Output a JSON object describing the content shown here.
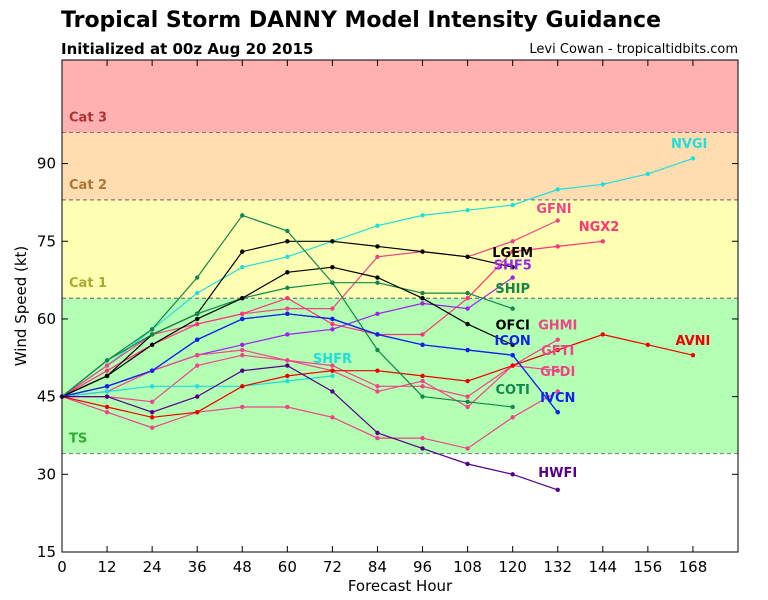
{
  "header": {
    "title": "Tropical Storm DANNY Model Intensity Guidance",
    "subtitle": "Initialized at 00z Aug 20 2015",
    "credit": "Levi Cowan - tropicaltidbits.com"
  },
  "chart_data": {
    "type": "line",
    "title": "Tropical Storm DANNY Model Intensity Guidance",
    "subtitle": "Initialized at 00z Aug 20 2015",
    "xlabel": "Forecast Hour",
    "ylabel": "Wind Speed (kt)",
    "xlim": [
      0,
      180
    ],
    "ylim": [
      15,
      110
    ],
    "xticks": [
      0,
      12,
      24,
      36,
      48,
      60,
      72,
      84,
      96,
      108,
      120,
      132,
      144,
      156,
      168
    ],
    "yticks": [
      15,
      30,
      45,
      60,
      75,
      90
    ],
    "categories_bands": [
      {
        "name": "TS",
        "lo": 34,
        "hi": 64,
        "color": "#b3ffb3",
        "text_color": "#33aa33"
      },
      {
        "name": "Cat 1",
        "lo": 64,
        "hi": 83,
        "color": "#ffffb3",
        "text_color": "#aaaa33"
      },
      {
        "name": "Cat 2",
        "lo": 83,
        "hi": 96,
        "color": "#ffddb0",
        "text_color": "#aa7733"
      },
      {
        "name": "Cat 3",
        "lo": 96,
        "hi": 110,
        "color": "#ffb0b0",
        "text_color": "#aa3333"
      }
    ],
    "series": [
      {
        "name": "NVGI",
        "color": "#22dddd",
        "x": [
          0,
          12,
          24,
          36,
          48,
          60,
          72,
          84,
          96,
          108,
          120,
          132,
          144,
          156,
          168
        ],
        "values": [
          45,
          51,
          58,
          65,
          70,
          72,
          75,
          78,
          80,
          81,
          82,
          85,
          86,
          88,
          91
        ],
        "label_x": 167,
        "label_y": 93
      },
      {
        "name": "GFNI",
        "color": "#ee4488",
        "x": [
          0,
          12,
          24,
          36,
          48,
          60,
          72,
          84,
          96,
          108,
          120,
          132
        ],
        "values": [
          45,
          51,
          57,
          59,
          61,
          62,
          62,
          72,
          73,
          72,
          75,
          79
        ],
        "label_x": 131,
        "label_y": 80.5
      },
      {
        "name": "NGX2",
        "color": "#ff3377",
        "x": [
          0,
          12,
          24,
          36,
          48,
          60,
          72,
          84,
          96,
          108,
          120,
          132,
          144
        ],
        "values": [
          45,
          50,
          55,
          59,
          61,
          64,
          59,
          57,
          57,
          64,
          73,
          74,
          75
        ],
        "label_x": 143,
        "label_y": 77
      },
      {
        "name": "LGEM",
        "color": "#000000",
        "x": [
          0,
          12,
          24,
          36,
          48,
          60,
          72,
          84,
          96,
          108,
          120
        ],
        "values": [
          45,
          49,
          57,
          61,
          73,
          75,
          75,
          74,
          73,
          72,
          70
        ],
        "label_x": 120,
        "label_y": 72
      },
      {
        "name": "SHF5",
        "color": "#9922ee",
        "x": [
          0,
          12,
          24,
          36,
          48,
          60,
          72,
          84,
          96,
          108,
          120
        ],
        "values": [
          45,
          47,
          50,
          53,
          55,
          57,
          58,
          61,
          63,
          62,
          68
        ],
        "label_x": 120,
        "label_y": 69.5
      },
      {
        "name": "SHIP",
        "color": "#11884a",
        "x": [
          0,
          12,
          24,
          36,
          48,
          60,
          72,
          84,
          96,
          108,
          120
        ],
        "values": [
          45,
          52,
          57,
          61,
          64,
          66,
          67,
          67,
          65,
          65,
          62
        ],
        "label_x": 120,
        "label_y": 65
      },
      {
        "name": "OFCI",
        "color": "#000000",
        "x": [
          0,
          12,
          24,
          36,
          48,
          60,
          72,
          84,
          96,
          108,
          120
        ],
        "values": [
          45,
          49,
          55,
          60,
          64,
          69,
          70,
          68,
          64,
          59,
          55
        ],
        "label_x": 120,
        "label_y": 58
      },
      {
        "name": "ICON",
        "color": "#1122ee",
        "x": [
          0,
          12,
          24,
          36,
          48,
          60,
          72,
          84,
          96,
          108,
          120,
          132
        ],
        "values": [
          45,
          47,
          50,
          56,
          60,
          61,
          60,
          57,
          55,
          54,
          53,
          42
        ],
        "label_x": 120,
        "label_y": 55
      },
      {
        "name": "GHMI",
        "color": "#ee4488",
        "x": [
          0,
          12,
          24,
          36,
          48,
          60,
          72,
          84,
          96,
          108,
          120,
          132
        ],
        "values": [
          45,
          45,
          44,
          51,
          53,
          52,
          50,
          46,
          48,
          43,
          51,
          56
        ],
        "label_x": 132,
        "label_y": 58
      },
      {
        "name": "GFTI",
        "color": "#ee4488",
        "x": [
          0,
          12,
          24,
          36,
          48,
          60,
          72,
          84,
          96,
          108,
          120,
          132
        ],
        "values": [
          45,
          46,
          50,
          53,
          54,
          52,
          51,
          47,
          47,
          45,
          51,
          50
        ],
        "label_x": 132,
        "label_y": 53
      },
      {
        "name": "GFDI",
        "color": "#ee4488",
        "x": [
          0,
          12,
          24,
          36,
          48,
          60,
          72,
          84,
          96,
          108,
          120,
          132
        ],
        "values": [
          45,
          42,
          39,
          42,
          43,
          43,
          41,
          37,
          37,
          35,
          41,
          46
        ],
        "label_x": 132,
        "label_y": 49
      },
      {
        "name": "SHFR",
        "color": "#22dddd",
        "x": [
          0,
          12,
          24,
          36,
          48,
          60,
          72
        ],
        "values": [
          45,
          46,
          47,
          47,
          47,
          48,
          49
        ],
        "label_x": 72,
        "label_y": 51.5
      },
      {
        "name": "AVNI",
        "color": "#ee0000",
        "x": [
          0,
          12,
          24,
          36,
          48,
          60,
          72,
          84,
          96,
          108,
          120,
          132,
          144,
          156,
          168
        ],
        "values": [
          45,
          43,
          41,
          42,
          47,
          49,
          50,
          50,
          49,
          48,
          51,
          54,
          57,
          55,
          53
        ],
        "label_x": 168,
        "label_y": 55
      },
      {
        "name": "COTI",
        "color": "#11884a",
        "x": [
          0,
          12,
          24,
          36,
          48,
          60,
          72,
          84,
          96,
          108,
          120
        ],
        "values": [
          45,
          52,
          58,
          68,
          80,
          77,
          67,
          54,
          45,
          44,
          43
        ],
        "label_x": 120,
        "label_y": 45.5
      },
      {
        "name": "IVCN",
        "color": "#1122ee",
        "x": [
          0,
          12,
          24,
          36,
          48,
          60,
          72,
          84,
          96,
          108,
          120,
          132
        ],
        "values": [
          45,
          47,
          50,
          56,
          60,
          61,
          60,
          57,
          55,
          54,
          53,
          42
        ],
        "label_x": 132,
        "label_y": 44
      },
      {
        "name": "HWFI",
        "color": "#550088",
        "x": [
          0,
          12,
          24,
          36,
          48,
          60,
          72,
          84,
          96,
          108,
          120,
          132
        ],
        "values": [
          45,
          45,
          42,
          45,
          50,
          51,
          46,
          38,
          35,
          32,
          30,
          27
        ],
        "label_x": 132,
        "label_y": 29.5
      }
    ]
  }
}
